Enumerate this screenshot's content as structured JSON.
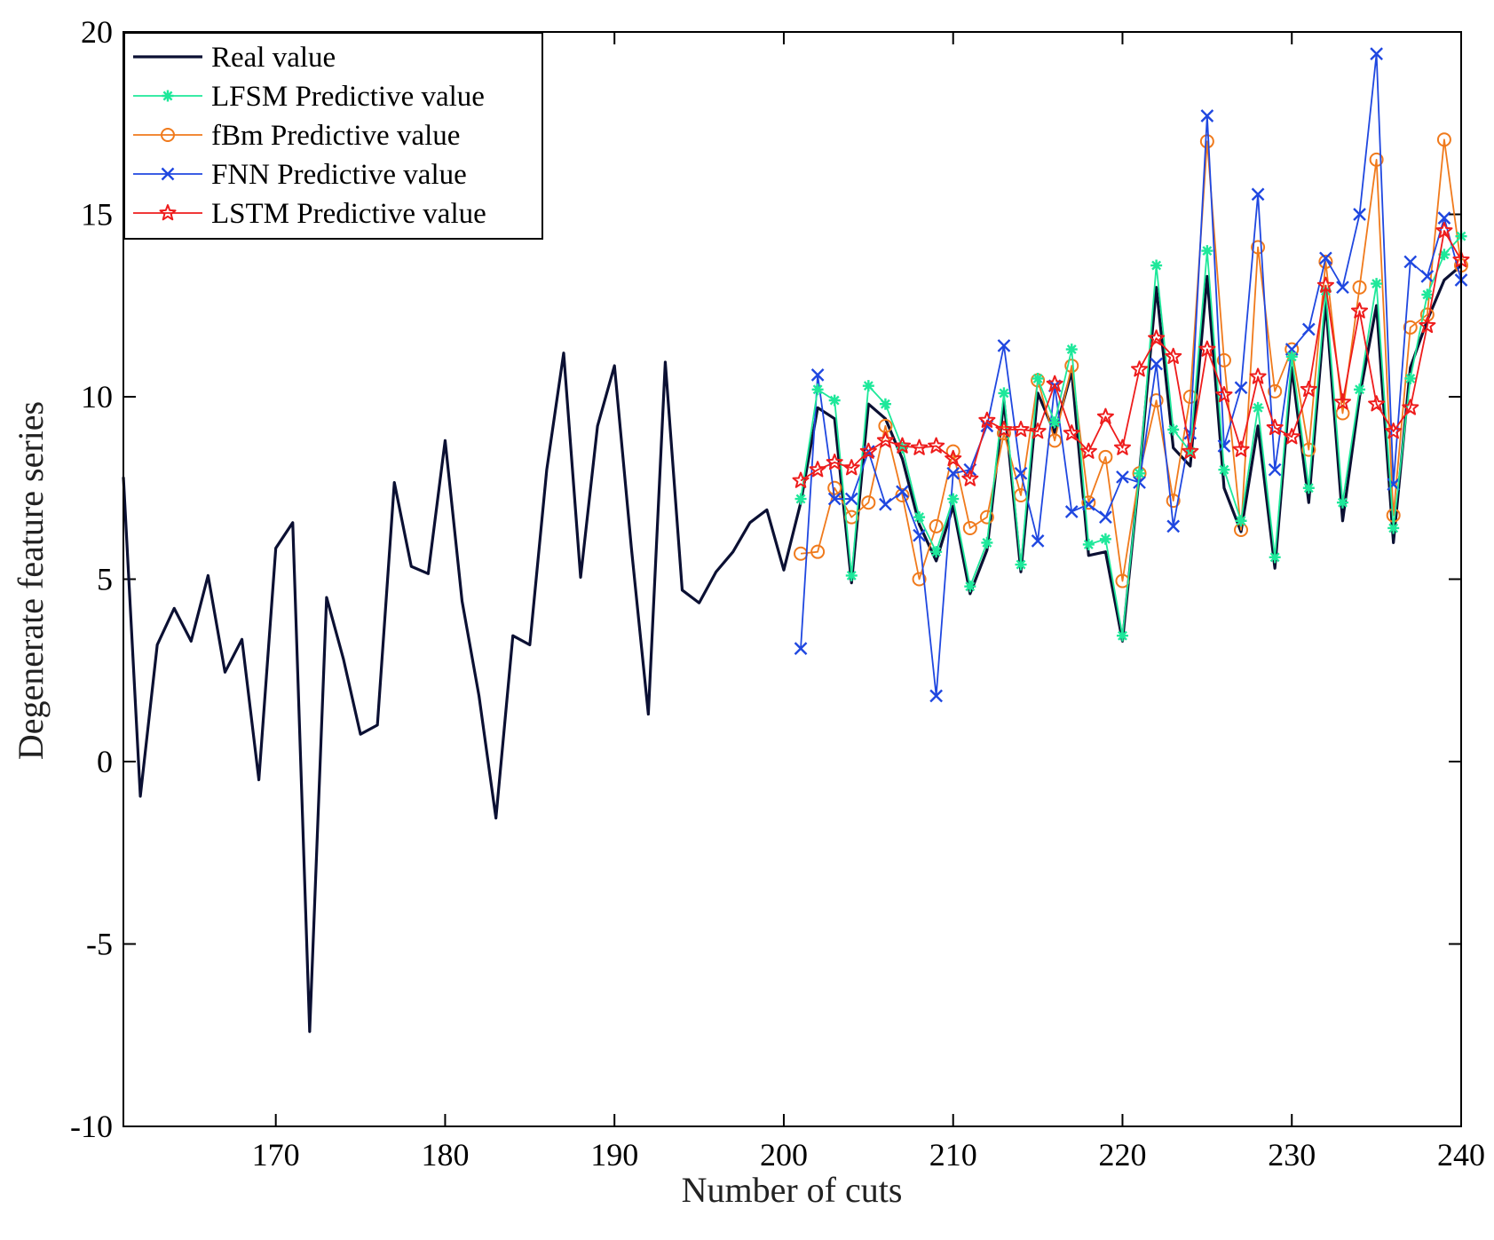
{
  "chart_data": {
    "type": "line",
    "title": "",
    "xlabel": "Number of cuts",
    "ylabel": "Degenerate feature series",
    "xlim": [
      161,
      240
    ],
    "ylim": [
      -10,
      20
    ],
    "xticks": [
      170,
      180,
      190,
      200,
      210,
      220,
      230,
      240
    ],
    "yticks": [
      -10,
      -5,
      0,
      5,
      10,
      15,
      20
    ],
    "legend_position": "top-left",
    "series": [
      {
        "name": "Real value",
        "color": "#0b1033",
        "marker": "none",
        "x_start": 161,
        "values": [
          7.8,
          -0.95,
          3.2,
          4.2,
          3.3,
          5.1,
          2.45,
          3.35,
          -0.5,
          5.85,
          6.55,
          -7.4,
          4.5,
          2.8,
          0.75,
          1.0,
          7.65,
          5.35,
          5.15,
          8.8,
          4.4,
          1.8,
          -1.55,
          3.45,
          3.2,
          8.0,
          11.2,
          5.05,
          9.2,
          10.85,
          5.85,
          1.3,
          10.95,
          4.7,
          4.35,
          5.2,
          5.75,
          6.55,
          6.9,
          5.25,
          7.1,
          9.7,
          9.4,
          4.9,
          9.8,
          9.4,
          8.3,
          6.5,
          5.5,
          7.0,
          4.6,
          5.8,
          9.9,
          5.2,
          10.1,
          9.0,
          10.7,
          5.65,
          5.75,
          3.3,
          7.9,
          13.0,
          8.6,
          8.1,
          13.3,
          7.5,
          6.3,
          9.2,
          5.3,
          10.8,
          7.1,
          12.6,
          6.6,
          10.0,
          12.5,
          6.0,
          10.8,
          12.1,
          13.2,
          13.6
        ]
      },
      {
        "name": "LFSM Predictive value",
        "color": "#1ee89a",
        "marker": "asterisk",
        "x_start": 201,
        "values": [
          7.2,
          10.2,
          9.9,
          5.1,
          10.3,
          9.8,
          8.6,
          6.7,
          5.75,
          7.2,
          4.8,
          6.0,
          10.1,
          5.4,
          10.5,
          9.3,
          11.3,
          5.95,
          6.1,
          3.45,
          7.9,
          13.6,
          9.1,
          8.5,
          14.0,
          8.0,
          6.6,
          9.7,
          5.6,
          11.1,
          7.5,
          12.9,
          7.1,
          10.2,
          13.1,
          6.4,
          10.5,
          12.8,
          13.9,
          14.4
        ]
      },
      {
        "name": "fBm Predictive value",
        "color": "#f07a1c",
        "marker": "circle",
        "x_start": 201,
        "values": [
          5.7,
          5.75,
          7.5,
          6.7,
          7.1,
          9.2,
          7.3,
          5.0,
          6.45,
          8.5,
          6.4,
          6.7,
          9.0,
          7.3,
          10.45,
          8.8,
          10.85,
          7.1,
          8.35,
          4.95,
          7.9,
          9.9,
          7.15,
          10.0,
          17.0,
          11.0,
          6.35,
          14.1,
          10.15,
          11.3,
          8.55,
          13.7,
          9.55,
          13.0,
          16.5,
          6.75,
          11.9,
          12.25,
          17.05,
          13.6
        ]
      },
      {
        "name": "FNN Predictive value",
        "color": "#1f47e0",
        "marker": "x",
        "x_start": 201,
        "values": [
          3.1,
          10.6,
          7.2,
          7.2,
          8.5,
          7.05,
          7.4,
          6.2,
          1.8,
          7.9,
          8.0,
          9.2,
          11.4,
          7.9,
          6.05,
          10.3,
          6.85,
          7.05,
          6.7,
          7.8,
          7.65,
          10.9,
          6.45,
          9.0,
          17.7,
          8.65,
          10.25,
          15.55,
          8.0,
          11.3,
          11.85,
          13.8,
          13.0,
          15.0,
          19.4,
          7.6,
          13.7,
          13.3,
          14.9,
          13.2
        ]
      },
      {
        "name": "LSTM Predictive value",
        "color": "#ee1c1c",
        "marker": "star",
        "x_start": 201,
        "values": [
          7.7,
          8.0,
          8.2,
          8.05,
          8.5,
          8.8,
          8.65,
          8.6,
          8.65,
          8.3,
          7.75,
          9.35,
          9.1,
          9.1,
          9.05,
          10.35,
          9.0,
          8.5,
          9.45,
          8.6,
          10.75,
          11.6,
          11.1,
          8.5,
          11.3,
          10.05,
          8.55,
          10.55,
          9.15,
          8.9,
          10.2,
          13.05,
          9.85,
          12.35,
          9.8,
          9.05,
          9.7,
          11.95,
          14.55,
          13.75
        ]
      }
    ]
  }
}
